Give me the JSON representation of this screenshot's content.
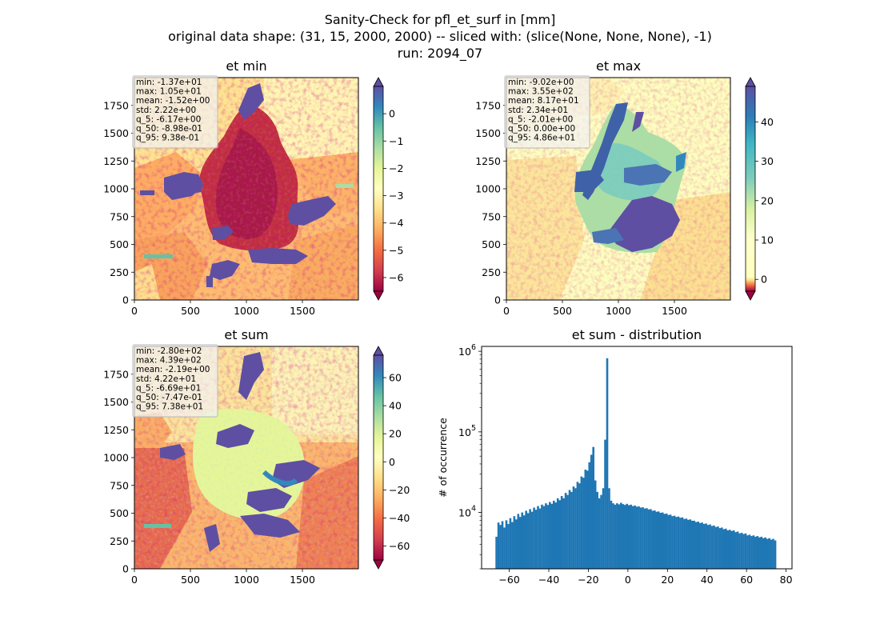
{
  "figure": {
    "title_lines": [
      "Sanity-Check for pfl_et_surf in [mm]",
      "original data shape: (31, 15, 2000, 2000) -- sliced with: (slice(None, None, None), -1)",
      "run: 2094_07"
    ]
  },
  "chart_data": [
    {
      "type": "heatmap",
      "title": "et min",
      "x_range": [
        0,
        2000
      ],
      "y_range": [
        0,
        2000
      ],
      "x_ticks": [
        0,
        500,
        1000,
        1500
      ],
      "y_ticks": [
        0,
        250,
        500,
        750,
        1000,
        1250,
        1500,
        1750
      ],
      "colormap": "Spectral",
      "colorbar_range": [
        -6.5,
        1.0
      ],
      "colorbar_ticks": [
        0,
        -1,
        -2,
        -3,
        -4,
        -5,
        -6
      ],
      "colorbar_extend": "both",
      "stats": [
        "min: -1.37e+01",
        "max: 1.05e+01",
        "mean: -1.52e+00",
        "std: 2.22e+00",
        "q_5: -6.17e+00",
        "q_50: -8.98e-01",
        "q_95: 9.38e-01"
      ]
    },
    {
      "type": "heatmap",
      "title": "et max",
      "x_range": [
        0,
        2000
      ],
      "y_range": [
        0,
        2000
      ],
      "x_ticks": [
        0,
        500,
        1000,
        1500
      ],
      "y_ticks": [
        0,
        250,
        500,
        750,
        1000,
        1250,
        1500,
        1750
      ],
      "colormap": "Spectral + YlGnBu",
      "colorbar_range": [
        -3,
        49
      ],
      "colorbar_ticks": [
        40,
        30,
        20,
        10,
        0
      ],
      "colorbar_extend": "both",
      "stats": [
        "min: -9.02e+00",
        "max: 3.55e+02",
        "mean: 8.17e+01",
        "std: 2.34e+01",
        "q_5: -2.01e+00",
        "q_50: 0.00e+00",
        "q_95: 4.86e+01"
      ]
    },
    {
      "type": "heatmap",
      "title": "et sum",
      "x_range": [
        0,
        2000
      ],
      "y_range": [
        0,
        2000
      ],
      "x_ticks": [
        0,
        500,
        1000,
        1500
      ],
      "y_ticks": [
        0,
        250,
        500,
        750,
        1000,
        1250,
        1500,
        1750
      ],
      "colormap": "Spectral",
      "colorbar_range": [
        -70,
        76
      ],
      "colorbar_ticks": [
        60,
        40,
        20,
        0,
        -20,
        -40,
        -60
      ],
      "colorbar_extend": "both",
      "stats": [
        "min: -2.80e+02",
        "max: 4.39e+02",
        "mean: -2.19e+00",
        "std: 4.22e+01",
        "q_5: -6.69e+01",
        "q_50: -7.47e-01",
        "q_95: 7.38e+01"
      ]
    },
    {
      "type": "bar",
      "title": "et sum - distribution",
      "ylabel": "# of occurrence",
      "yscale": "log",
      "color": "#1f77b4",
      "xlim": [
        -74,
        83
      ],
      "ylim": [
        2000,
        1150000
      ],
      "x_ticks": [
        -60,
        -40,
        -20,
        0,
        20,
        40,
        60,
        80
      ],
      "y_ticks": [
        {
          "value": 1000000,
          "base": "10",
          "exp": "6"
        },
        {
          "value": 100000,
          "base": "10",
          "exp": "5"
        },
        {
          "value": 10000,
          "base": "10",
          "exp": "4"
        }
      ],
      "bins": {
        "start": -67,
        "width": 1,
        "counts": [
          5000,
          7500,
          7000,
          7800,
          6500,
          8000,
          7200,
          8500,
          7600,
          9000,
          8200,
          9600,
          8800,
          10000,
          9200,
          10500,
          9800,
          11000,
          10200,
          11500,
          10800,
          12000,
          11200,
          12500,
          12000,
          13000,
          12400,
          13500,
          12800,
          14000,
          13300,
          15000,
          14200,
          16000,
          15000,
          17500,
          16500,
          19000,
          18000,
          21000,
          20000,
          24000,
          23000,
          28000,
          27000,
          34000,
          33000,
          42000,
          52000,
          65000,
          25000,
          18000,
          15000,
          16500,
          20000,
          80000,
          820000,
          20000,
          14000,
          13000,
          12500,
          13000,
          12600,
          13200,
          12700,
          12400,
          12800,
          12300,
          12500,
          12000,
          12200,
          11800,
          11900,
          11500,
          11600,
          11200,
          11300,
          10900,
          11000,
          10500,
          10600,
          10200,
          10300,
          9900,
          10000,
          9600,
          9700,
          9300,
          9400,
          9000,
          9100,
          8800,
          8900,
          8600,
          8700,
          8300,
          8400,
          8100,
          8200,
          7900,
          7900,
          7600,
          7700,
          7400,
          7500,
          7200,
          7300,
          7000,
          7100,
          6800,
          6900,
          6600,
          6700,
          6400,
          6500,
          6200,
          6300,
          6000,
          6100,
          5900,
          6000,
          5700,
          5800,
          5500,
          5600,
          5400,
          5500,
          5200,
          5300,
          5100,
          5200,
          5000,
          5100,
          4900,
          5000,
          4800,
          4900,
          4700,
          4800,
          4600,
          4700,
          4500
        ]
      }
    }
  ]
}
